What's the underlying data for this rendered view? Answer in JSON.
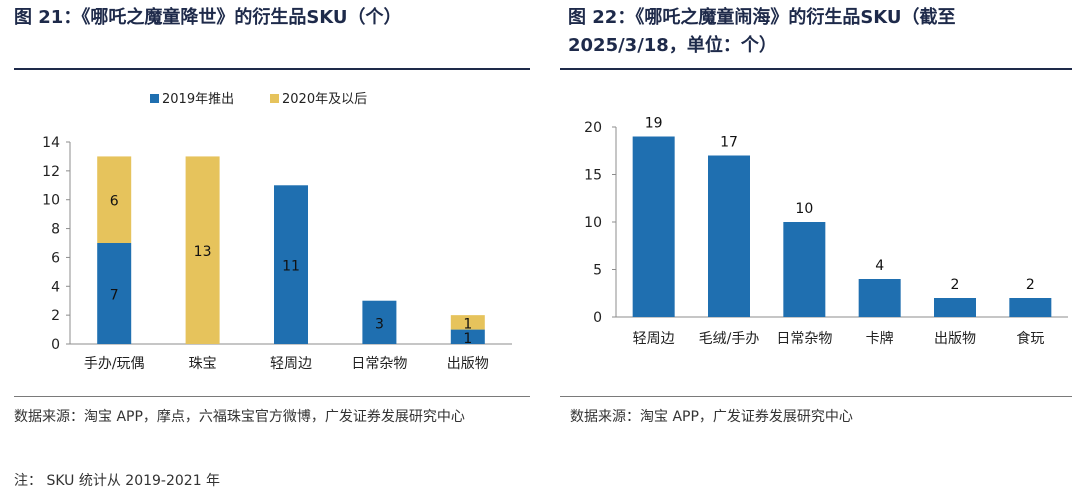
{
  "left_figure": {
    "title": "图 21：《哪吒之魔童降世》的衍生品SKU（个）",
    "source": "数据来源：淘宝 APP，摩点，六福珠宝官方微博，广发证券发展研究中心",
    "note": "注： SKU 统计从 2019-2021 年"
  },
  "right_figure": {
    "title_line1": "图 22：《哪吒之魔童闹海》的衍生品SKU（截至",
    "title_line2": "2025/3/18，单位：个）",
    "source": "数据来源：淘宝 APP，广发证券发展研究中心"
  },
  "chart_data": [
    {
      "type": "bar",
      "stacked": true,
      "categories": [
        "手办/玩偶",
        "珠宝",
        "轻周边",
        "日常杂物",
        "出版物"
      ],
      "series": [
        {
          "name": "2019年推出",
          "values": [
            7,
            0,
            11,
            3,
            1
          ],
          "color": "#1f6fb0"
        },
        {
          "name": "2020年及以后",
          "values": [
            6,
            13,
            0,
            0,
            1
          ],
          "color": "#e6c35c"
        }
      ],
      "ylim": [
        0,
        14
      ],
      "yticks": [
        0,
        2,
        4,
        6,
        8,
        10,
        12,
        14
      ],
      "legend": "top",
      "grid": false
    },
    {
      "type": "bar",
      "categories": [
        "轻周边",
        "毛绒/手办",
        "日常杂物",
        "卡牌",
        "出版物",
        "食玩"
      ],
      "values": [
        19,
        17,
        10,
        4,
        2,
        2
      ],
      "color": "#1f6fb0",
      "ylim": [
        0,
        20
      ],
      "yticks": [
        0,
        5,
        10,
        15,
        20
      ],
      "grid": false
    }
  ]
}
